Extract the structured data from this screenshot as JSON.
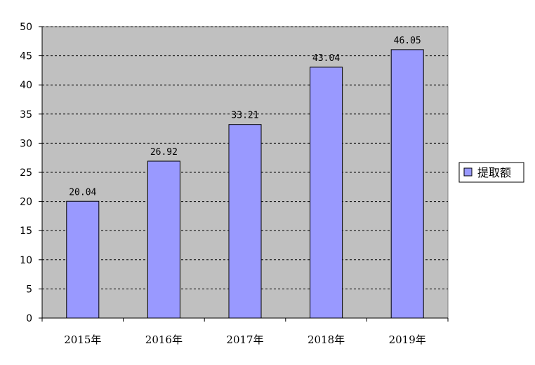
{
  "chart_data": {
    "type": "bar",
    "categories": [
      "2015年",
      "2016年",
      "2017年",
      "2018年",
      "2019年"
    ],
    "series": [
      {
        "name": "提取额",
        "values": [
          20.04,
          26.92,
          33.21,
          43.04,
          46.05
        ],
        "value_labels": [
          "20.04",
          "26.92",
          "33.21",
          "43.04",
          "46.05"
        ],
        "color": "#9999ff"
      }
    ],
    "title": "",
    "xlabel": "",
    "ylabel": "",
    "ylim": [
      0,
      50
    ],
    "yticks": [
      "0",
      "5",
      "10",
      "15",
      "20",
      "25",
      "30",
      "35",
      "40",
      "45",
      "50"
    ],
    "grid": true,
    "legend_position": "right",
    "plot_background": "#c0c0c0",
    "gridline_color": "#000000",
    "bar_border_color": "#000000"
  }
}
